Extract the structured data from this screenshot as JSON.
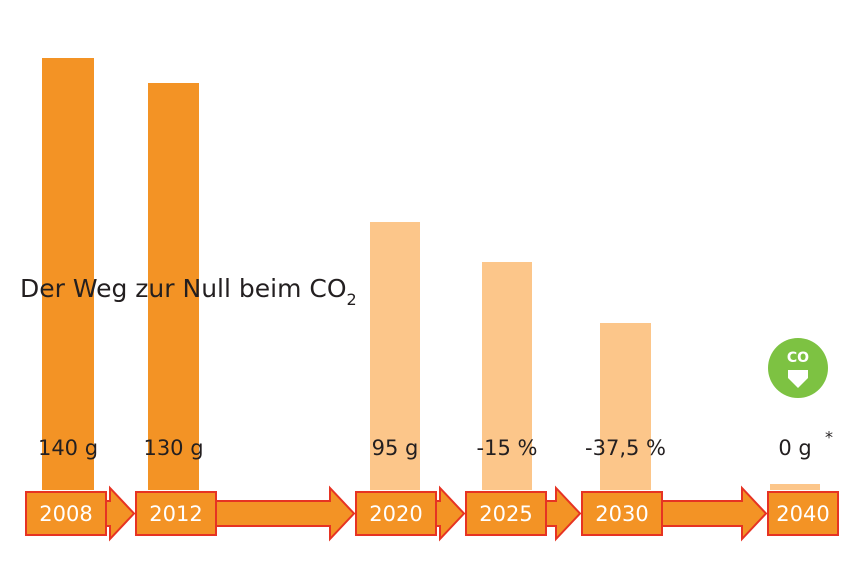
{
  "title": "Der Weg zur Null beim CO",
  "title_subscript": "2",
  "milestones": [
    {
      "year": "2008",
      "label": "140 g"
    },
    {
      "year": "2012",
      "label": "130 g"
    },
    {
      "year": "2020",
      "label": "95 g"
    },
    {
      "year": "2025",
      "label": "-15 %"
    },
    {
      "year": "2030",
      "label": "-37,5 %"
    },
    {
      "year": "2040",
      "label": "0 g",
      "note": "*"
    }
  ],
  "icon_text": "CO"
}
